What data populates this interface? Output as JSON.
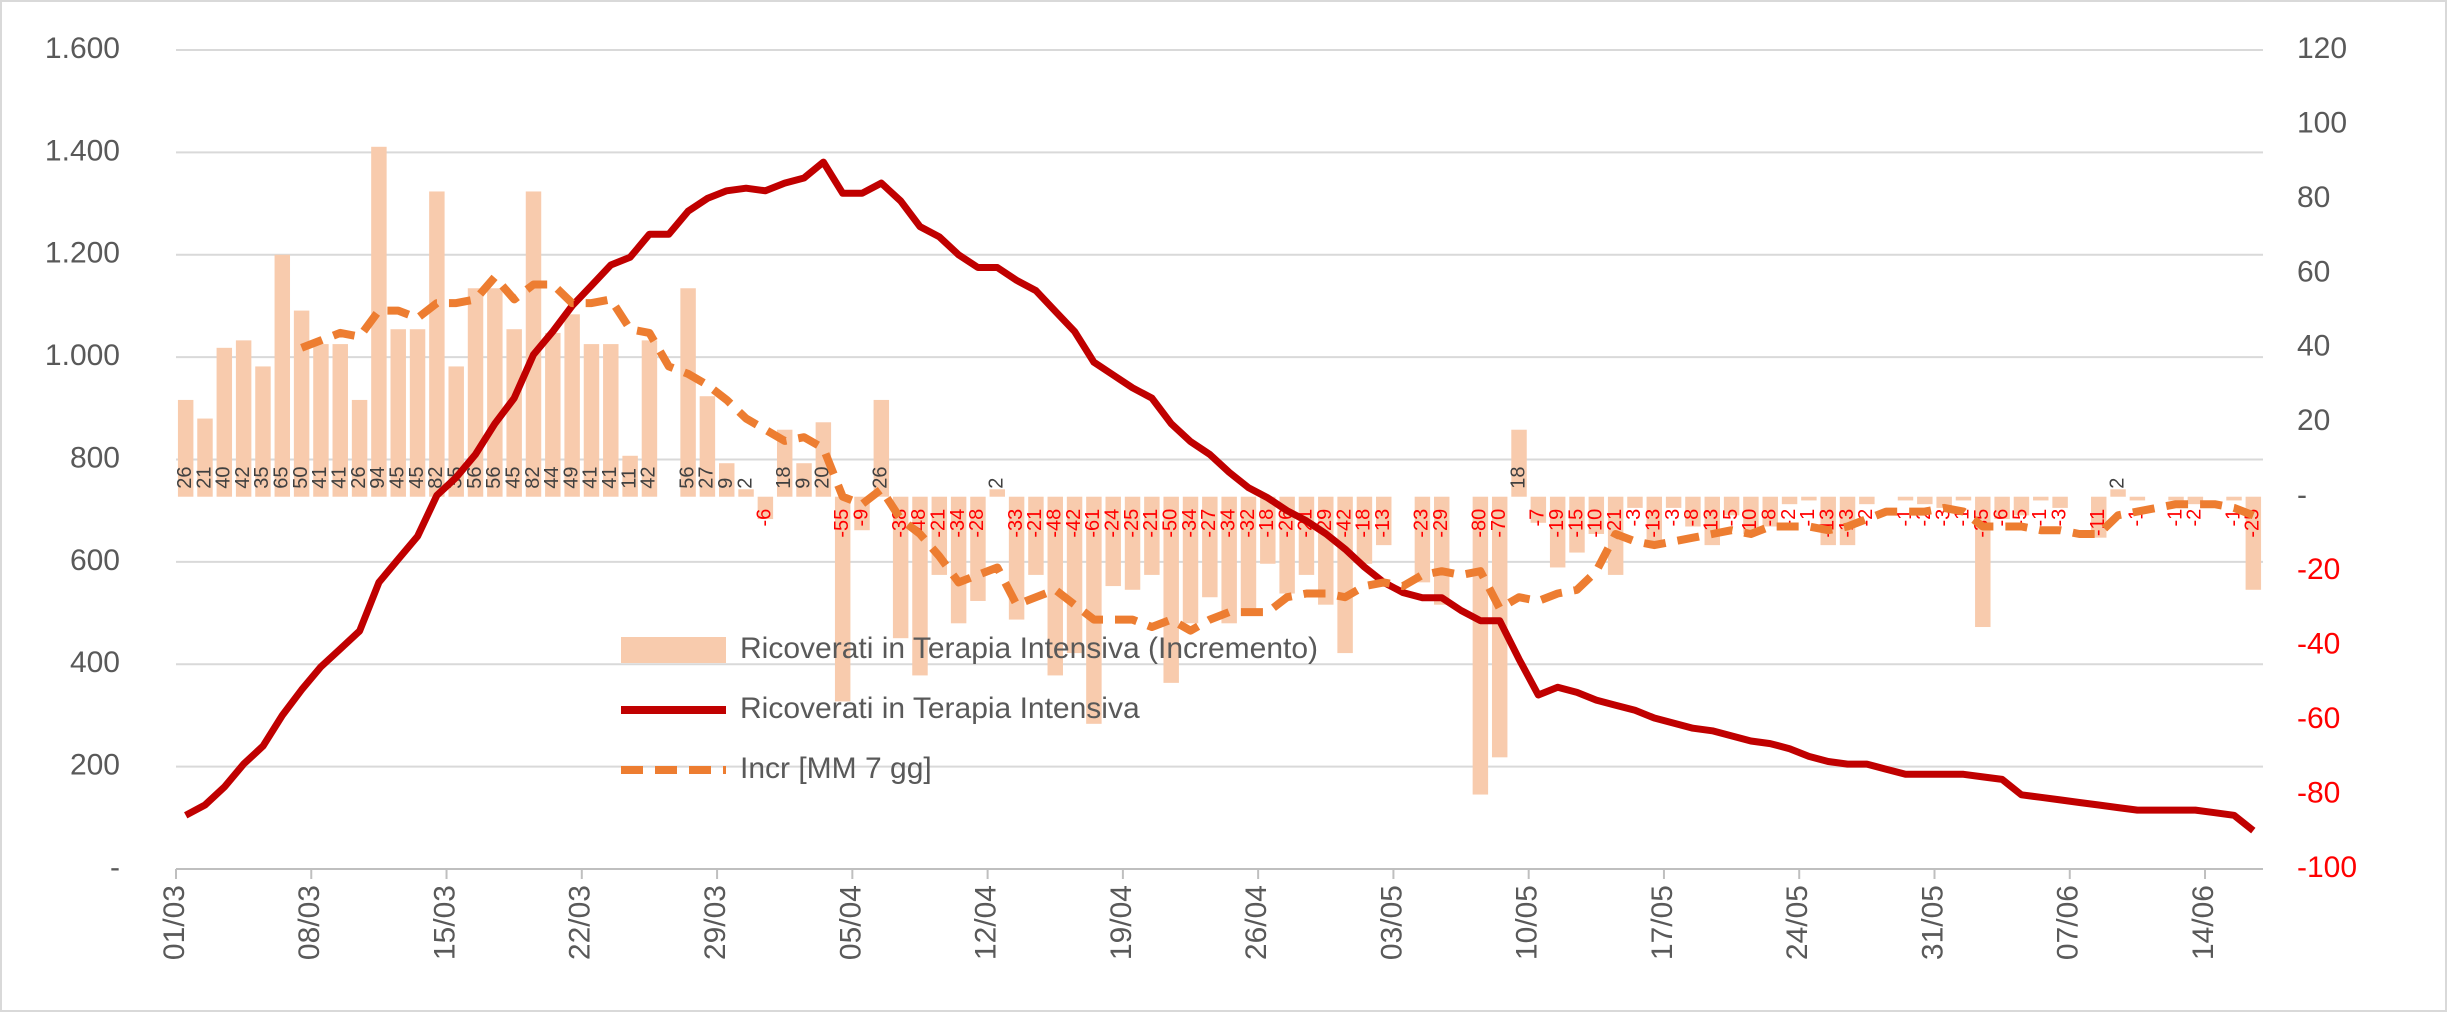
{
  "chart_data": {
    "type": "combo",
    "categories": [
      "01/03",
      null,
      null,
      null,
      null,
      null,
      null,
      "08/03",
      null,
      null,
      null,
      null,
      null,
      null,
      "15/03",
      null,
      null,
      null,
      null,
      null,
      null,
      "22/03",
      null,
      null,
      null,
      null,
      null,
      null,
      "29/03",
      null,
      null,
      null,
      null,
      null,
      null,
      "05/04",
      null,
      null,
      null,
      null,
      null,
      null,
      "12/04",
      null,
      null,
      null,
      null,
      null,
      null,
      "19/04",
      null,
      null,
      null,
      null,
      null,
      null,
      "26/04",
      null,
      null,
      null,
      null,
      null,
      null,
      "03/05",
      null,
      null,
      null,
      null,
      null,
      null,
      "10/05",
      null,
      null,
      null,
      null,
      null,
      null,
      "17/05",
      null,
      null,
      null,
      null,
      null,
      null,
      "24/05",
      null,
      null,
      null,
      null,
      null,
      null,
      "31/05",
      null,
      null,
      null,
      null,
      null,
      null,
      "07/06",
      null,
      null,
      null,
      null,
      null,
      null,
      "14/06",
      null,
      null
    ],
    "series": [
      {
        "name": "Ricoverati in Terapia Intensiva (Incremento)",
        "type": "bar",
        "axis": "y2",
        "color": "#f8cbad",
        "values": [
          26,
          21,
          40,
          42,
          35,
          65,
          50,
          41,
          41,
          26,
          94,
          45,
          45,
          82,
          35,
          56,
          56,
          45,
          82,
          44,
          49,
          41,
          41,
          11,
          42,
          0,
          56,
          27,
          9,
          2,
          -6,
          18,
          9,
          20,
          -55,
          -9,
          26,
          -38,
          -48,
          -21,
          -34,
          -28,
          2,
          -33,
          -21,
          -48,
          -42,
          -61,
          -24,
          -25,
          -21,
          -50,
          -34,
          -27,
          -34,
          -32,
          -18,
          -26,
          -21,
          -29,
          -42,
          -18,
          -13,
          0,
          -23,
          -29,
          0,
          -80,
          -70,
          18,
          -7,
          -19,
          -15,
          -10,
          -21,
          -3,
          -13,
          -3,
          -8,
          -13,
          -5,
          -10,
          -8,
          -2,
          -1,
          -13,
          -13,
          -2,
          0,
          -1,
          -2,
          -3,
          -1,
          -35,
          -6,
          -5,
          -1,
          -3,
          0,
          -11,
          2,
          -1,
          0,
          -1,
          -2,
          0,
          -1,
          -25
        ]
      },
      {
        "name": "Ricoverati in Terapia Intensiva",
        "type": "line",
        "color": "#c00000",
        "values": [
          105,
          125,
          160,
          205,
          240,
          300,
          350,
          395,
          430,
          465,
          560,
          605,
          650,
          730,
          765,
          810,
          870,
          920,
          1005,
          1050,
          1100,
          1140,
          1180,
          1195,
          1240,
          1240,
          1285,
          1310,
          1325,
          1330,
          1325,
          1340,
          1350,
          1381,
          1320,
          1320,
          1340,
          1305,
          1255,
          1235,
          1200,
          1175,
          1175,
          1150,
          1130,
          1090,
          1050,
          990,
          965,
          940,
          920,
          870,
          835,
          810,
          775,
          745,
          725,
          700,
          680,
          655,
          625,
          590,
          560,
          540,
          530,
          530,
          505,
          485,
          485,
          410,
          340,
          355,
          345,
          330,
          320,
          310,
          295,
          285,
          275,
          270,
          260,
          250,
          245,
          235,
          220,
          210,
          205,
          205,
          195,
          185,
          185,
          185,
          185,
          180,
          175,
          145,
          140,
          135,
          130,
          125,
          120,
          115,
          115,
          115,
          115,
          110,
          105,
          75
        ]
      },
      {
        "name": "Incr [MM 7 gg]",
        "type": "line",
        "dashed": true,
        "axis": "y2",
        "color": "#ed7d31",
        "values": [
          null,
          null,
          null,
          null,
          null,
          null,
          40,
          42,
          44,
          43,
          50,
          50,
          48,
          52,
          52,
          53,
          59,
          53,
          57,
          57,
          52,
          52,
          53,
          45,
          44,
          35,
          33,
          30,
          26,
          21,
          18,
          15,
          16,
          13,
          0,
          -2,
          2,
          -6,
          -10,
          -16,
          -23,
          -21,
          -19,
          -29,
          -27,
          -25,
          -29,
          -33,
          -33,
          -33,
          -35,
          -33,
          -36,
          -33,
          -31,
          -31,
          -31,
          -27,
          -26,
          -26,
          -27,
          -24,
          -23,
          -24,
          -21,
          -20,
          -21,
          -20,
          -30,
          -27,
          -28,
          -26,
          -25,
          -20,
          -10,
          -12,
          -13,
          -12,
          -11,
          -10,
          -9,
          -10,
          -8,
          -8,
          -8,
          -9,
          -8,
          -6,
          -4,
          -4,
          -4,
          -3,
          -4,
          -8,
          -8,
          -8,
          -9,
          -9,
          -10,
          -10,
          -5,
          -4,
          -3,
          -2,
          -2,
          -2,
          -3,
          -5
        ]
      }
    ],
    "ylim": [
      0,
      1600
    ],
    "yticks": [
      {
        "value": 0,
        "label": "-"
      },
      200,
      400,
      600,
      800,
      {
        "value": 1000,
        "label": "1.000"
      },
      {
        "value": 1200,
        "label": "1.200"
      },
      {
        "value": 1400,
        "label": "1.400"
      },
      {
        "value": 1600,
        "label": "1.600"
      }
    ],
    "y2lim": [
      -100,
      120
    ],
    "y2ticks": [
      -100,
      -80,
      -60,
      -40,
      -20,
      {
        "value": 0,
        "label": "-"
      },
      20,
      40,
      60,
      80,
      100,
      120
    ],
    "negative_tick_color": "#ff0000",
    "grid": true,
    "legend": "center"
  }
}
